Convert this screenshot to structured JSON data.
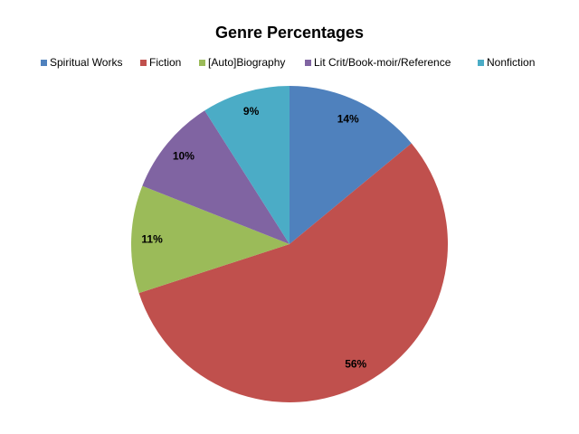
{
  "chart_data": {
    "type": "pie",
    "title": "Genre Percentages",
    "categories": [
      "Spiritual Works",
      "Fiction",
      "[Auto]Biography",
      "Lit Crit/Book-moir/Reference",
      "Nonfiction"
    ],
    "values": [
      14,
      56,
      11,
      10,
      9
    ],
    "value_labels": [
      "14%",
      "56%",
      "11%",
      "10%",
      "9%"
    ],
    "colors": [
      "#4f81bd",
      "#c0504d",
      "#9bbb59",
      "#8064a2",
      "#4bacc6"
    ],
    "legend": "top"
  }
}
